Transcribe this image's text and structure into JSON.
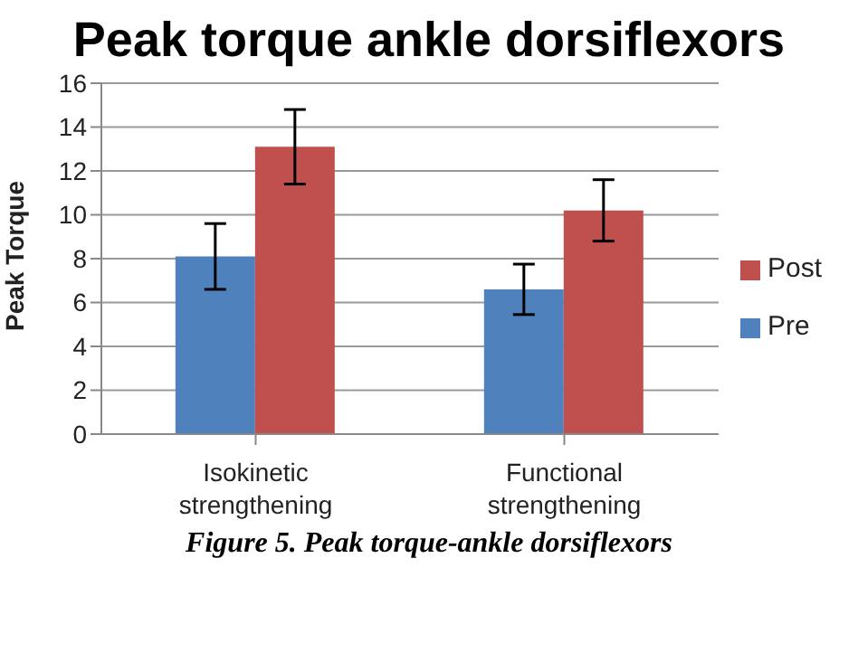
{
  "chart_data": {
    "type": "bar",
    "title": "Peak torque ankle dorsiflexors",
    "ylabel": "Peak Torque",
    "categories": [
      "Isokinetic strengthening",
      "Functional strengthening"
    ],
    "series": [
      {
        "name": "Pre",
        "color": "#4f81bd",
        "values": [
          8.1,
          6.6
        ],
        "errors": [
          1.5,
          1.15
        ]
      },
      {
        "name": "Post",
        "color": "#c0504d",
        "values": [
          13.1,
          10.2
        ],
        "errors": [
          1.7,
          1.4
        ]
      }
    ],
    "ylim": [
      0,
      16
    ],
    "yticks": [
      0,
      2,
      4,
      6,
      8,
      10,
      12,
      14,
      16
    ],
    "grid": "y",
    "legend": "right",
    "annotations": [
      "Figure 5. Peak torque-ankle dorsiflexors"
    ]
  }
}
